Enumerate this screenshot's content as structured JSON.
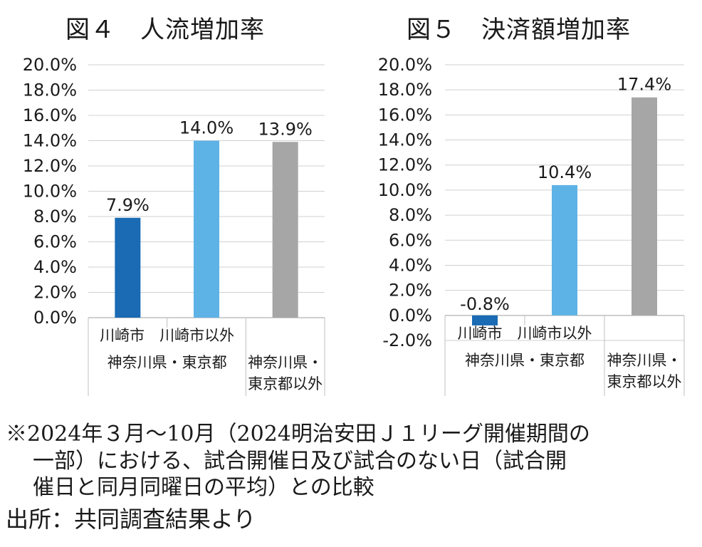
{
  "chart_data": [
    {
      "type": "bar",
      "title": "図４　人流増加率",
      "categories": [
        "川崎市",
        "川崎市以外\n神奈川県・東京都",
        "神奈川県・\n東京都以外"
      ],
      "category_label_lines": [
        [
          "川崎市　川崎市以外"
        ],
        [
          "神奈川県・東京都"
        ],
        [
          "神奈川県・",
          "東京都以外"
        ]
      ],
      "values": [
        7.9,
        14.0,
        13.9
      ],
      "data_labels": [
        "7.9%",
        "14.0%",
        "13.9%"
      ],
      "colors": [
        "#1a6ab4",
        "#5db3e6",
        "#a6a6a6"
      ],
      "ylim": [
        0,
        20
      ],
      "yticks": [
        "0.0%",
        "2.0%",
        "4.0%",
        "6.0%",
        "8.0%",
        "10.0%",
        "12.0%",
        "14.0%",
        "16.0%",
        "18.0%",
        "20.0%"
      ],
      "grid": true,
      "xlabel": "",
      "ylabel": ""
    },
    {
      "type": "bar",
      "title": "図５　決済額増加率",
      "categories": [
        "川崎市",
        "川崎市以外\n神奈川県・東京都",
        "神奈川県・\n東京都以外"
      ],
      "category_label_lines": [
        [
          "川崎市　川崎市以外"
        ],
        [
          "神奈川県・東京都"
        ],
        [
          "神奈川県・",
          "東京都以外"
        ]
      ],
      "values": [
        -0.8,
        10.4,
        17.4
      ],
      "data_labels": [
        "-0.8%",
        "10.4%",
        "17.4%"
      ],
      "colors": [
        "#1a6ab4",
        "#5db3e6",
        "#a6a6a6"
      ],
      "ylim": [
        -2,
        20
      ],
      "yticks": [
        "-2.0%",
        "0.0%",
        "2.0%",
        "4.0%",
        "6.0%",
        "8.0%",
        "10.0%",
        "12.0%",
        "14.0%",
        "16.0%",
        "18.0%",
        "20.0%"
      ],
      "grid": true,
      "xlabel": "",
      "ylabel": ""
    }
  ],
  "notes": {
    "line1": "※2024年３月～10月（2024明治安田Ｊ１リーグ開催期間の",
    "line2": "一部）における、試合開催日及び試合のない日（試合開",
    "line3": "催日と同月同曜日の平均）との比較"
  },
  "source": "出所：共同調査結果より"
}
